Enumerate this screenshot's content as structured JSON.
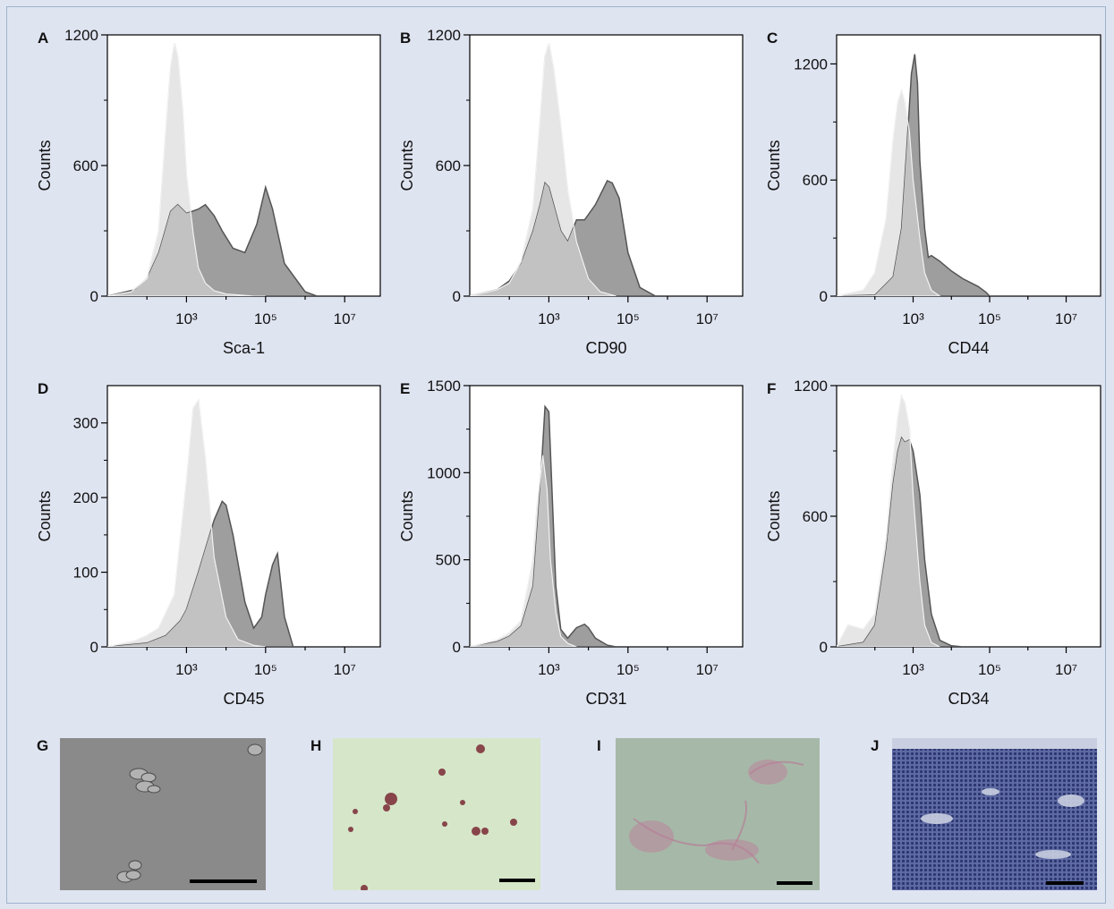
{
  "colors": {
    "background": "#dfe4f1",
    "control_fill": "#e6e6e6",
    "control_stroke": "#d2d2d2",
    "stained_fill": "#9e9e9e",
    "stained_stroke": "#555555",
    "overlap_fill": "#c2c2c2"
  },
  "ylabel": "Counts",
  "chart_data": [
    {
      "type": "area",
      "panel": "A",
      "xlabel": "Sca-1",
      "ylim": [
        0,
        1200
      ],
      "yticks": [
        "0",
        "600",
        "1200"
      ],
      "xticks": [
        "10³",
        "10⁵",
        "10⁷"
      ],
      "xscale": "log",
      "series": [
        {
          "role": "control",
          "x": [
            10,
            40,
            100,
            200,
            300,
            400,
            500,
            600,
            800,
            1000,
            1500,
            2000,
            3000,
            5000,
            10000,
            50000,
            100000
          ],
          "y": [
            0,
            20,
            80,
            300,
            750,
            1050,
            1160,
            1100,
            850,
            550,
            280,
            130,
            60,
            25,
            10,
            0,
            0
          ]
        },
        {
          "role": "stained",
          "x": [
            10,
            50,
            100,
            200,
            400,
            600,
            1000,
            2000,
            3000,
            5000,
            8000,
            15000,
            30000,
            60000,
            100000,
            150000,
            300000,
            1000000,
            2000000
          ],
          "y": [
            0,
            30,
            80,
            200,
            390,
            420,
            380,
            400,
            420,
            370,
            300,
            220,
            200,
            330,
            500,
            400,
            150,
            20,
            0
          ]
        }
      ]
    },
    {
      "type": "area",
      "panel": "B",
      "xlabel": "CD90",
      "ylim": [
        0,
        1200
      ],
      "yticks": [
        "0",
        "600",
        "1200"
      ],
      "xticks": [
        "10³",
        "10⁵",
        "10⁷"
      ],
      "xscale": "log",
      "series": [
        {
          "role": "control",
          "x": [
            10,
            50,
            100,
            200,
            400,
            600,
            800,
            1000,
            1300,
            2000,
            3000,
            5000,
            10000,
            20000,
            50000
          ],
          "y": [
            0,
            30,
            60,
            160,
            400,
            800,
            1100,
            1160,
            1050,
            780,
            480,
            250,
            80,
            20,
            0
          ]
        },
        {
          "role": "stained",
          "x": [
            10,
            50,
            100,
            200,
            400,
            600,
            800,
            1000,
            2000,
            3000,
            5000,
            8000,
            15000,
            30000,
            40000,
            60000,
            100000,
            200000,
            500000
          ],
          "y": [
            0,
            30,
            70,
            150,
            300,
            420,
            520,
            500,
            300,
            250,
            350,
            350,
            420,
            530,
            520,
            450,
            200,
            40,
            0
          ]
        }
      ]
    },
    {
      "type": "area",
      "panel": "C",
      "xlabel": "CD44",
      "ylim": [
        0,
        1350
      ],
      "yticks": [
        "0",
        "600",
        "1200"
      ],
      "xticks": [
        "10³",
        "10⁵",
        "10⁷"
      ],
      "xscale": "log",
      "series": [
        {
          "role": "control",
          "x": [
            10,
            50,
            100,
            200,
            300,
            400,
            500,
            600,
            800,
            1000,
            1500,
            2000,
            3000,
            5000
          ],
          "y": [
            0,
            30,
            120,
            400,
            800,
            1000,
            1060,
            1000,
            850,
            600,
            300,
            120,
            30,
            0
          ]
        },
        {
          "role": "stained",
          "x": [
            10,
            100,
            300,
            500,
            700,
            900,
            1100,
            1300,
            1500,
            2000,
            2500,
            3000,
            5000,
            10000,
            20000,
            50000,
            80000,
            100000
          ],
          "y": [
            0,
            5,
            100,
            350,
            800,
            1150,
            1250,
            1100,
            700,
            350,
            200,
            210,
            180,
            130,
            90,
            50,
            20,
            0
          ]
        }
      ]
    },
    {
      "type": "area",
      "panel": "D",
      "xlabel": "CD45",
      "ylim": [
        0,
        350
      ],
      "yticks": [
        "0",
        "100",
        "200",
        "300"
      ],
      "xticks": [
        "10³",
        "10⁵",
        "10⁷"
      ],
      "xscale": "log",
      "series": [
        {
          "role": "control",
          "x": [
            10,
            50,
            100,
            200,
            500,
            1000,
            1500,
            2000,
            3000,
            5000,
            10000,
            20000,
            50000,
            100000
          ],
          "y": [
            0,
            8,
            15,
            25,
            70,
            220,
            320,
            330,
            250,
            120,
            40,
            10,
            2,
            0
          ]
        },
        {
          "role": "stained",
          "x": [
            10,
            100,
            300,
            700,
            1000,
            2000,
            5000,
            8000,
            10000,
            15000,
            30000,
            50000,
            80000,
            100000,
            150000,
            200000,
            300000,
            500000
          ],
          "y": [
            0,
            5,
            15,
            35,
            50,
            100,
            170,
            195,
            190,
            150,
            60,
            25,
            40,
            70,
            110,
            125,
            40,
            0
          ]
        }
      ]
    },
    {
      "type": "area",
      "panel": "E",
      "xlabel": "CD31",
      "ylim": [
        0,
        1500
      ],
      "yticks": [
        "0",
        "500",
        "1000",
        "1500"
      ],
      "xticks": [
        "10³",
        "10⁵",
        "10⁷"
      ],
      "xscale": "log",
      "series": [
        {
          "role": "control",
          "x": [
            10,
            50,
            100,
            200,
            400,
            500,
            700,
            900,
            1100,
            1500,
            2000,
            3000,
            5000
          ],
          "y": [
            0,
            40,
            80,
            150,
            500,
            800,
            1100,
            900,
            500,
            200,
            60,
            20,
            0
          ]
        },
        {
          "role": "stained",
          "x": [
            10,
            50,
            100,
            200,
            400,
            600,
            800,
            1000,
            1200,
            1500,
            2000,
            3000,
            5000,
            8000,
            10000,
            15000,
            30000,
            50000
          ],
          "y": [
            0,
            30,
            60,
            120,
            350,
            900,
            1380,
            1350,
            900,
            350,
            100,
            50,
            110,
            130,
            110,
            50,
            10,
            0
          ]
        }
      ]
    },
    {
      "type": "area",
      "panel": "F",
      "xlabel": "CD34",
      "ylim": [
        0,
        1200
      ],
      "yticks": [
        "0",
        "600",
        "1200"
      ],
      "xticks": [
        "10³",
        "10⁵",
        "10⁷"
      ],
      "xscale": "log",
      "series": [
        {
          "role": "control",
          "x": [
            10,
            20,
            50,
            100,
            200,
            300,
            400,
            500,
            600,
            800,
            1000,
            1500,
            2000,
            3000,
            5000
          ],
          "y": [
            0,
            100,
            80,
            150,
            500,
            850,
            1050,
            1150,
            1120,
            1000,
            700,
            300,
            100,
            20,
            0
          ]
        },
        {
          "role": "stained",
          "x": [
            10,
            50,
            100,
            200,
            300,
            400,
            500,
            600,
            800,
            1000,
            1500,
            2000,
            3000,
            5000,
            10000,
            20000
          ],
          "y": [
            0,
            20,
            100,
            450,
            750,
            900,
            960,
            940,
            950,
            900,
            700,
            400,
            150,
            30,
            5,
            0
          ]
        }
      ]
    }
  ],
  "micrographs": [
    {
      "letter": "G"
    },
    {
      "letter": "H"
    },
    {
      "letter": "I"
    },
    {
      "letter": "J"
    }
  ]
}
